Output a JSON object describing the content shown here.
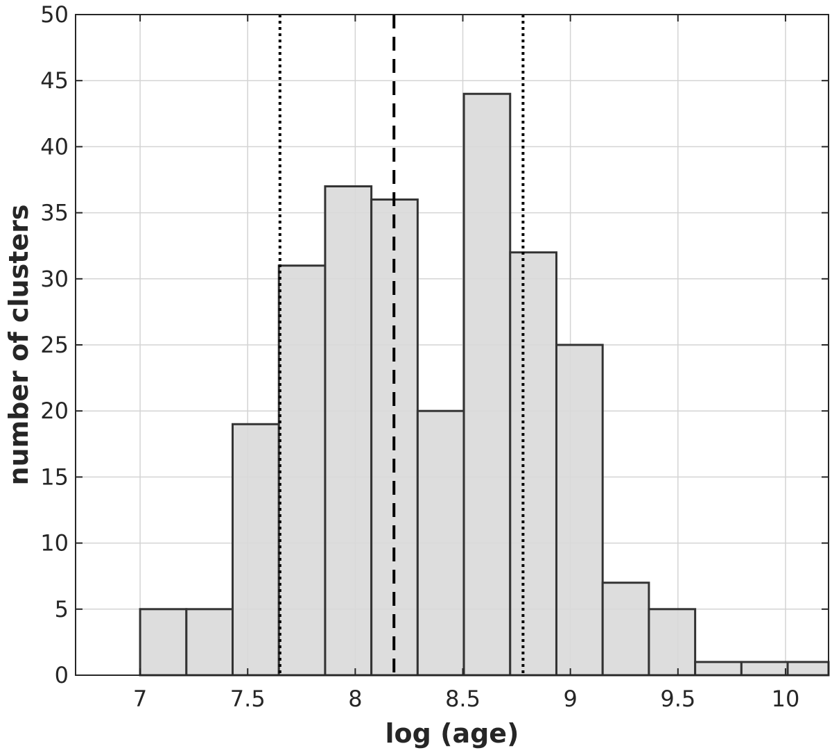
{
  "chart_data": {
    "type": "bar",
    "subtype": "histogram",
    "title": "",
    "xlabel": "log (age)",
    "ylabel": "number of clusters",
    "xlim": [
      6.7,
      10.2
    ],
    "ylim": [
      0,
      50
    ],
    "x_ticks": [
      7,
      7.5,
      8,
      8.5,
      9,
      9.5,
      10
    ],
    "x_tick_labels": [
      "7",
      "7.5",
      "8",
      "8.5",
      "9",
      "9.5",
      "10"
    ],
    "y_ticks": [
      0,
      5,
      10,
      15,
      20,
      25,
      30,
      35,
      40,
      45,
      50
    ],
    "y_tick_labels": [
      "0",
      "5",
      "10",
      "15",
      "20",
      "25",
      "30",
      "35",
      "40",
      "45",
      "50"
    ],
    "bin_edges": [
      7.0,
      7.215,
      7.43,
      7.645,
      7.86,
      8.075,
      8.29,
      8.505,
      8.72,
      8.935,
      9.15,
      9.365,
      9.58,
      9.795,
      10.01,
      10.2
    ],
    "values": [
      5,
      5,
      19,
      31,
      37,
      36,
      20,
      44,
      32,
      25,
      7,
      5,
      1,
      1,
      1
    ],
    "reference_lines": [
      {
        "x": 7.65,
        "style": "dotted"
      },
      {
        "x": 8.18,
        "style": "dashed"
      },
      {
        "x": 8.78,
        "style": "dotted"
      }
    ],
    "grid": true,
    "bar_color": "#d9d9d9",
    "edge_color": "#333333"
  }
}
